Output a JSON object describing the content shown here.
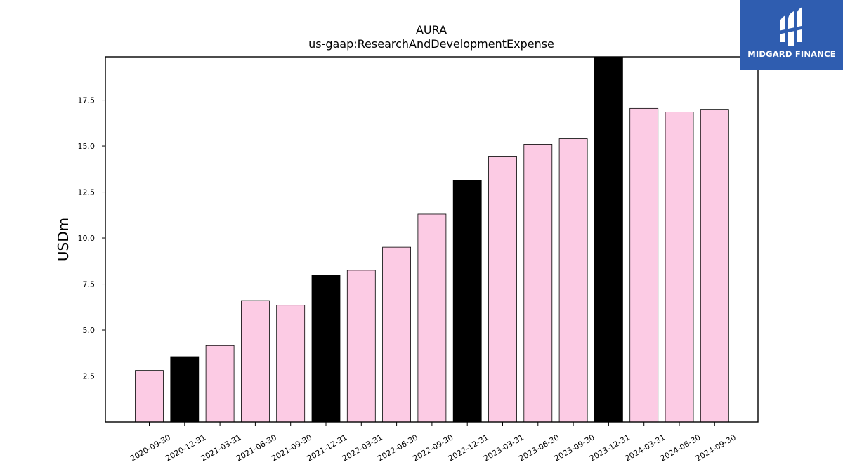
{
  "chart_data": {
    "type": "bar",
    "title": "AURA",
    "subtitle": "us-gaap:ResearchAndDevelopmentExpense",
    "xlabel": "",
    "ylabel": "USDm",
    "ylim": [
      0,
      19.85
    ],
    "yticks": [
      2.5,
      5.0,
      7.5,
      10.0,
      12.5,
      15.0,
      17.5
    ],
    "ytick_labels": [
      "2.5",
      "5.0",
      "7.5",
      "10.0",
      "12.5",
      "15.0",
      "17.5"
    ],
    "grid": false,
    "categories": [
      "2020-09-30",
      "2020-12-31",
      "2021-03-31",
      "2021-06-30",
      "2021-09-30",
      "2021-12-31",
      "2022-03-31",
      "2022-06-30",
      "2022-09-30",
      "2022-12-31",
      "2023-03-31",
      "2023-06-30",
      "2023-09-30",
      "2023-12-31",
      "2024-03-31",
      "2024-06-30",
      "2024-09-30"
    ],
    "values": [
      2.8,
      3.55,
      4.15,
      6.6,
      6.35,
      8.0,
      8.25,
      9.5,
      11.3,
      13.15,
      14.45,
      15.1,
      15.4,
      19.85,
      17.05,
      16.85,
      17.0
    ],
    "colors": {
      "quarter": "#fccbe4",
      "year_end": "#000000",
      "edge": "#000000"
    },
    "year_end_categories": [
      "2020-12-31",
      "2021-12-31",
      "2022-12-31",
      "2023-12-31"
    ]
  },
  "logo": {
    "text": "MIDGARD FINANCE",
    "background": "#2f5db0"
  }
}
